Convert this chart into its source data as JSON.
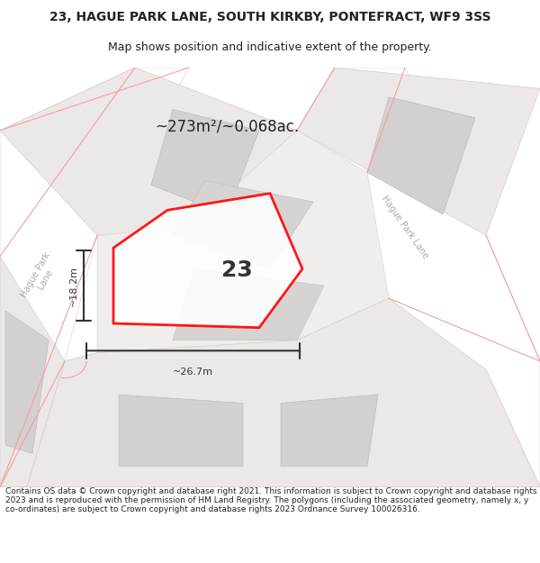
{
  "title_line1": "23, HAGUE PARK LANE, SOUTH KIRKBY, PONTEFRACT, WF9 3SS",
  "title_line2": "Map shows position and indicative extent of the property.",
  "area_text": "~273m²/~0.068ac.",
  "label_number": "23",
  "dim_width": "~26.7m",
  "dim_height": "~18.2m",
  "footer_text": "Contains OS data © Crown copyright and database right 2021. This information is subject to Crown copyright and database rights 2023 and is reproduced with the permission of HM Land Registry. The polygons (including the associated geometry, namely x, y co-ordinates) are subject to Crown copyright and database rights 2023 Ordnance Survey 100026316.",
  "bg_color": "#f5f0f0",
  "road_color": "#ffffff",
  "building_fill": "#d8d8d8",
  "building_edge": "#cccccc",
  "plot_outline_color": "#ff0000",
  "plot_fill_color": "#ffffff",
  "road_line_color": "#f0c0c0",
  "dim_line_color": "#333333",
  "label_road_left": "Hague Park Lane",
  "label_road_right": "Hague Park Lane",
  "map_bg": "#f7f2f2"
}
